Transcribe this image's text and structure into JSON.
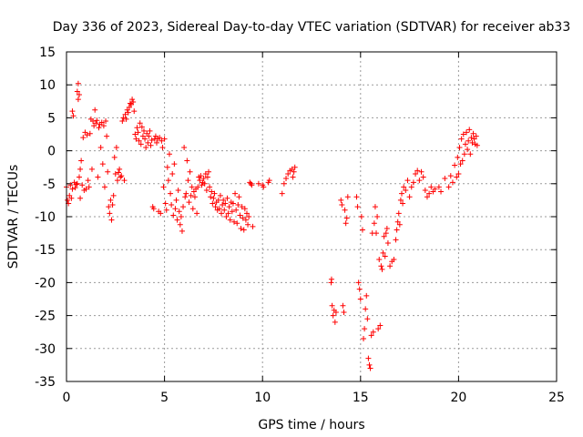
{
  "chart_data": {
    "type": "scatter",
    "title": "Day 336 of 2023, Sidereal Day-to-day VTEC variation (SDTVAR) for receiver ab33",
    "xlabel": "GPS time / hours",
    "ylabel": "SDTVAR / TECUs",
    "xlim": [
      0,
      25
    ],
    "ylim": [
      -35,
      15
    ],
    "xticks": [
      0,
      5,
      10,
      15,
      20,
      25
    ],
    "yticks": [
      15,
      10,
      5,
      0,
      -5,
      -10,
      -15,
      -20,
      -25,
      -30,
      -35
    ],
    "grid": true,
    "marker": "plus",
    "color": "#ff0000",
    "series": [
      {
        "name": "SDTVAR",
        "points": [
          [
            0.0,
            -5.5
          ],
          [
            0.05,
            -7.5
          ],
          [
            0.1,
            -8.0
          ],
          [
            0.15,
            -6.8
          ],
          [
            0.2,
            -5.2
          ],
          [
            0.25,
            -7.2
          ],
          [
            0.3,
            -5.8
          ],
          [
            0.3,
            6.0
          ],
          [
            0.35,
            5.3
          ],
          [
            0.4,
            -4.8
          ],
          [
            0.45,
            -5.6
          ],
          [
            0.5,
            -5.1
          ],
          [
            0.55,
            -5.0
          ],
          [
            0.55,
            9.0
          ],
          [
            0.6,
            10.2
          ],
          [
            0.6,
            7.8
          ],
          [
            0.65,
            8.5
          ],
          [
            0.65,
            -4.0
          ],
          [
            0.7,
            -2.8
          ],
          [
            0.7,
            -7.2
          ],
          [
            0.75,
            -1.5
          ],
          [
            0.8,
            -5.2
          ],
          [
            0.85,
            2.0
          ],
          [
            0.9,
            -6.0
          ],
          [
            0.95,
            2.8
          ],
          [
            1.0,
            -5.8
          ],
          [
            1.05,
            2.4
          ],
          [
            1.1,
            -4.5
          ],
          [
            1.15,
            -5.5
          ],
          [
            1.2,
            2.6
          ],
          [
            1.25,
            4.8
          ],
          [
            1.3,
            -2.8
          ],
          [
            1.35,
            4.5
          ],
          [
            1.4,
            3.8
          ],
          [
            1.45,
            6.2
          ],
          [
            1.5,
            4.2
          ],
          [
            1.55,
            4.6
          ],
          [
            1.6,
            -4.0
          ],
          [
            1.65,
            3.5
          ],
          [
            1.7,
            4.0
          ],
          [
            1.75,
            0.5
          ],
          [
            1.8,
            4.3
          ],
          [
            1.85,
            -2.0
          ],
          [
            1.9,
            3.8
          ],
          [
            1.95,
            -5.5
          ],
          [
            2.0,
            4.5
          ],
          [
            2.05,
            2.2
          ],
          [
            2.1,
            -3.2
          ],
          [
            2.15,
            -8.5
          ],
          [
            2.2,
            -9.5
          ],
          [
            2.25,
            -7.5
          ],
          [
            2.3,
            -10.5
          ],
          [
            2.35,
            -8.2
          ],
          [
            2.4,
            -6.8
          ],
          [
            2.45,
            -1.0
          ],
          [
            2.5,
            -3.5
          ],
          [
            2.55,
            0.5
          ],
          [
            2.6,
            -4.5
          ],
          [
            2.65,
            -3.3
          ],
          [
            2.7,
            -2.8
          ],
          [
            2.75,
            -4.0
          ],
          [
            2.8,
            -3.8
          ],
          [
            2.85,
            4.5
          ],
          [
            2.9,
            5.0
          ],
          [
            2.95,
            -4.5
          ],
          [
            3.0,
            5.5
          ],
          [
            3.05,
            4.8
          ],
          [
            3.1,
            6.2
          ],
          [
            3.15,
            5.8
          ],
          [
            3.2,
            6.6
          ],
          [
            3.25,
            7.2
          ],
          [
            3.3,
            7.0
          ],
          [
            3.35,
            7.8
          ],
          [
            3.4,
            7.4
          ],
          [
            3.45,
            6.0
          ],
          [
            3.5,
            2.5
          ],
          [
            3.55,
            1.8
          ],
          [
            3.6,
            3.5
          ],
          [
            3.65,
            2.8
          ],
          [
            3.7,
            1.5
          ],
          [
            3.75,
            4.2
          ],
          [
            3.8,
            1.0
          ],
          [
            3.85,
            3.6
          ],
          [
            3.9,
            2.2
          ],
          [
            3.95,
            3.0
          ],
          [
            4.0,
            1.8
          ],
          [
            4.05,
            0.5
          ],
          [
            4.1,
            2.6
          ],
          [
            4.15,
            1.2
          ],
          [
            4.2,
            2.2
          ],
          [
            4.25,
            3.0
          ],
          [
            4.3,
            0.8
          ],
          [
            4.35,
            1.6
          ],
          [
            4.4,
            -8.5
          ],
          [
            4.45,
            -8.8
          ],
          [
            4.5,
            1.8
          ],
          [
            4.55,
            2.2
          ],
          [
            4.6,
            1.2
          ],
          [
            4.65,
            1.8
          ],
          [
            4.7,
            -9.2
          ],
          [
            4.75,
            2.0
          ],
          [
            4.8,
            -9.5
          ],
          [
            4.85,
            1.5
          ],
          [
            4.9,
            0.5
          ],
          [
            4.95,
            -5.5
          ],
          [
            5.0,
            1.8
          ],
          [
            5.05,
            -8.0
          ],
          [
            5.1,
            -9.0
          ],
          [
            5.15,
            -2.5
          ],
          [
            5.2,
            -4.5
          ],
          [
            5.25,
            -0.5
          ],
          [
            5.3,
            -6.5
          ],
          [
            5.35,
            -8.2
          ],
          [
            5.4,
            -3.5
          ],
          [
            5.45,
            -9.8
          ],
          [
            5.5,
            -2.0
          ],
          [
            5.55,
            -8.8
          ],
          [
            5.6,
            -7.5
          ],
          [
            5.65,
            -10.5
          ],
          [
            5.7,
            -6.0
          ],
          [
            5.75,
            -9.2
          ],
          [
            5.8,
            -11.2
          ],
          [
            5.85,
            -10.0
          ],
          [
            5.9,
            -12.2
          ],
          [
            5.95,
            -8.5
          ],
          [
            6.0,
            0.5
          ],
          [
            6.05,
            -7.0
          ],
          [
            6.1,
            -6.5
          ],
          [
            6.15,
            -1.5
          ],
          [
            6.2,
            -4.5
          ],
          [
            6.25,
            -7.8
          ],
          [
            6.3,
            -3.2
          ],
          [
            6.35,
            -6.8
          ],
          [
            6.4,
            -5.5
          ],
          [
            6.45,
            -8.8
          ],
          [
            6.5,
            -6.2
          ],
          [
            6.55,
            -7.0
          ],
          [
            6.6,
            -5.8
          ],
          [
            6.65,
            -9.5
          ],
          [
            6.7,
            -5.5
          ],
          [
            6.75,
            -4.0
          ],
          [
            6.8,
            -4.5
          ],
          [
            6.85,
            -3.8
          ],
          [
            6.9,
            -5.2
          ],
          [
            6.95,
            -4.8
          ],
          [
            7.0,
            -4.2
          ],
          [
            7.05,
            -5.0
          ],
          [
            7.1,
            -3.5
          ],
          [
            7.15,
            -6.0
          ],
          [
            7.2,
            -4.0
          ],
          [
            7.25,
            -3.2
          ],
          [
            7.3,
            -5.5
          ],
          [
            7.35,
            -7.0
          ],
          [
            7.4,
            -6.2
          ],
          [
            7.45,
            -8.0
          ],
          [
            7.5,
            -7.2
          ],
          [
            7.55,
            -6.5
          ],
          [
            7.6,
            -8.5
          ],
          [
            7.65,
            -7.8
          ],
          [
            7.7,
            -9.0
          ],
          [
            7.75,
            -7.5
          ],
          [
            7.8,
            -8.8
          ],
          [
            7.85,
            -6.8
          ],
          [
            7.9,
            -9.5
          ],
          [
            7.95,
            -8.2
          ],
          [
            8.0,
            -7.5
          ],
          [
            8.05,
            -9.0
          ],
          [
            8.1,
            -8.0
          ],
          [
            8.15,
            -10.0
          ],
          [
            8.2,
            -7.2
          ],
          [
            8.25,
            -9.5
          ],
          [
            8.3,
            -8.5
          ],
          [
            8.35,
            -10.5
          ],
          [
            8.4,
            -7.8
          ],
          [
            8.45,
            -9.2
          ],
          [
            8.5,
            -8.0
          ],
          [
            8.55,
            -10.8
          ],
          [
            8.6,
            -6.5
          ],
          [
            8.65,
            -9.0
          ],
          [
            8.7,
            -11.0
          ],
          [
            8.75,
            -8.2
          ],
          [
            8.8,
            -7.0
          ],
          [
            8.85,
            -9.8
          ],
          [
            8.9,
            -11.8
          ],
          [
            8.95,
            -8.5
          ],
          [
            9.0,
            -10.2
          ],
          [
            9.05,
            -12.0
          ],
          [
            9.1,
            -8.8
          ],
          [
            9.15,
            -10.5
          ],
          [
            9.2,
            -9.5
          ],
          [
            9.25,
            -11.2
          ],
          [
            9.3,
            -10.0
          ],
          [
            9.35,
            -4.8
          ],
          [
            9.4,
            -5.0
          ],
          [
            9.45,
            -5.2
          ],
          [
            9.5,
            -11.5
          ],
          [
            9.8,
            -5.0
          ],
          [
            10.0,
            -5.2
          ],
          [
            10.05,
            -5.5
          ],
          [
            10.3,
            -4.8
          ],
          [
            10.35,
            -4.5
          ],
          [
            11.0,
            -6.5
          ],
          [
            11.1,
            -5.0
          ],
          [
            11.2,
            -4.2
          ],
          [
            11.3,
            -3.5
          ],
          [
            11.4,
            -3.0
          ],
          [
            11.5,
            -2.8
          ],
          [
            11.55,
            -4.0
          ],
          [
            11.6,
            -3.2
          ],
          [
            11.65,
            -2.5
          ],
          [
            13.5,
            -20.0
          ],
          [
            13.52,
            -19.5
          ],
          [
            13.55,
            -23.5
          ],
          [
            13.6,
            -25.0
          ],
          [
            13.65,
            -24.2
          ],
          [
            13.7,
            -26.0
          ],
          [
            13.75,
            -24.5
          ],
          [
            14.0,
            -7.5
          ],
          [
            14.05,
            -8.2
          ],
          [
            14.1,
            -23.5
          ],
          [
            14.15,
            -24.5
          ],
          [
            14.2,
            -9.0
          ],
          [
            14.25,
            -11.0
          ],
          [
            14.3,
            -10.2
          ],
          [
            14.35,
            -7.0
          ],
          [
            14.8,
            -7.0
          ],
          [
            14.85,
            -8.5
          ],
          [
            14.9,
            -20.0
          ],
          [
            14.95,
            -21.0
          ],
          [
            15.0,
            -22.5
          ],
          [
            15.05,
            -10.0
          ],
          [
            15.1,
            -12.0
          ],
          [
            15.15,
            -28.5
          ],
          [
            15.2,
            -27.0
          ],
          [
            15.25,
            -24.0
          ],
          [
            15.3,
            -22.0
          ],
          [
            15.35,
            -25.5
          ],
          [
            15.4,
            -31.5
          ],
          [
            15.45,
            -32.5
          ],
          [
            15.5,
            -33.0
          ],
          [
            15.55,
            -28.0
          ],
          [
            15.6,
            -12.5
          ],
          [
            15.65,
            -27.5
          ],
          [
            15.7,
            -11.0
          ],
          [
            15.75,
            -8.5
          ],
          [
            15.8,
            -12.5
          ],
          [
            15.85,
            -10.0
          ],
          [
            15.9,
            -27.0
          ],
          [
            15.95,
            -16.5
          ],
          [
            16.0,
            -26.5
          ],
          [
            16.05,
            -17.5
          ],
          [
            16.1,
            -18.0
          ],
          [
            16.15,
            -15.5
          ],
          [
            16.2,
            -13.0
          ],
          [
            16.25,
            -16.0
          ],
          [
            16.3,
            -12.5
          ],
          [
            16.35,
            -11.8
          ],
          [
            16.4,
            -14.0
          ],
          [
            16.5,
            -17.5
          ],
          [
            16.6,
            -16.8
          ],
          [
            16.7,
            -16.5
          ],
          [
            16.8,
            -13.5
          ],
          [
            16.85,
            -12.0
          ],
          [
            16.9,
            -10.8
          ],
          [
            16.95,
            -9.5
          ],
          [
            17.0,
            -11.2
          ],
          [
            17.05,
            -7.5
          ],
          [
            17.1,
            -6.5
          ],
          [
            17.15,
            -8.0
          ],
          [
            17.2,
            -5.5
          ],
          [
            17.3,
            -6.0
          ],
          [
            17.4,
            -4.5
          ],
          [
            17.5,
            -7.0
          ],
          [
            17.6,
            -5.5
          ],
          [
            17.7,
            -4.8
          ],
          [
            17.8,
            -3.5
          ],
          [
            17.9,
            -3.0
          ],
          [
            18.0,
            -4.5
          ],
          [
            18.1,
            -3.2
          ],
          [
            18.2,
            -4.0
          ],
          [
            18.3,
            -6.0
          ],
          [
            18.4,
            -7.0
          ],
          [
            18.5,
            -6.5
          ],
          [
            18.6,
            -5.5
          ],
          [
            18.7,
            -6.2
          ],
          [
            18.8,
            -5.8
          ],
          [
            19.0,
            -5.5
          ],
          [
            19.1,
            -6.2
          ],
          [
            19.3,
            -4.2
          ],
          [
            19.5,
            -5.5
          ],
          [
            19.6,
            -3.8
          ],
          [
            19.7,
            -4.8
          ],
          [
            19.8,
            -2.2
          ],
          [
            19.9,
            -4.0
          ],
          [
            19.95,
            -1.0
          ],
          [
            20.0,
            -3.5
          ],
          [
            20.05,
            0.5
          ],
          [
            20.1,
            -2.0
          ],
          [
            20.15,
            1.8
          ],
          [
            20.2,
            -1.5
          ],
          [
            20.25,
            2.5
          ],
          [
            20.3,
            -0.5
          ],
          [
            20.35,
            1.0
          ],
          [
            20.4,
            2.8
          ],
          [
            20.45,
            0.2
          ],
          [
            20.5,
            1.5
          ],
          [
            20.55,
            3.2
          ],
          [
            20.6,
            -0.5
          ],
          [
            20.65,
            2.0
          ],
          [
            20.7,
            1.2
          ],
          [
            20.75,
            2.6
          ],
          [
            20.8,
            1.8
          ],
          [
            20.85,
            1.0
          ],
          [
            20.9,
            2.2
          ],
          [
            20.95,
            0.8
          ]
        ]
      }
    ]
  }
}
